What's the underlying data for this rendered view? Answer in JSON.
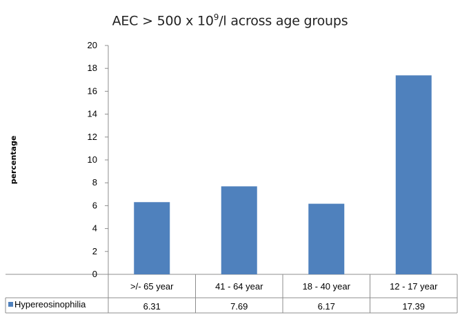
{
  "chart_data": {
    "type": "bar",
    "title_prefix": "AEC > 500 x 10",
    "title_exp": "9",
    "title_suffix": "/l across age groups",
    "ylabel": "percentage",
    "xlabel": "",
    "ylim": [
      0,
      20
    ],
    "yticks": [
      "0",
      "2",
      "4",
      "6",
      "8",
      "10",
      "12",
      "14",
      "16",
      "18",
      "20"
    ],
    "categories": [
      ">/- 65 year",
      "41 - 64 year",
      "18 - 40 year",
      "12 - 17 year"
    ],
    "series": [
      {
        "name": "Hypereosinophilia",
        "values": [
          6.31,
          7.69,
          6.17,
          17.39
        ],
        "value_labels": [
          "6.31",
          "7.69",
          "6.17",
          "17.39"
        ],
        "color": "#4f81bd"
      }
    ],
    "legend": "data-table",
    "grid": false
  }
}
